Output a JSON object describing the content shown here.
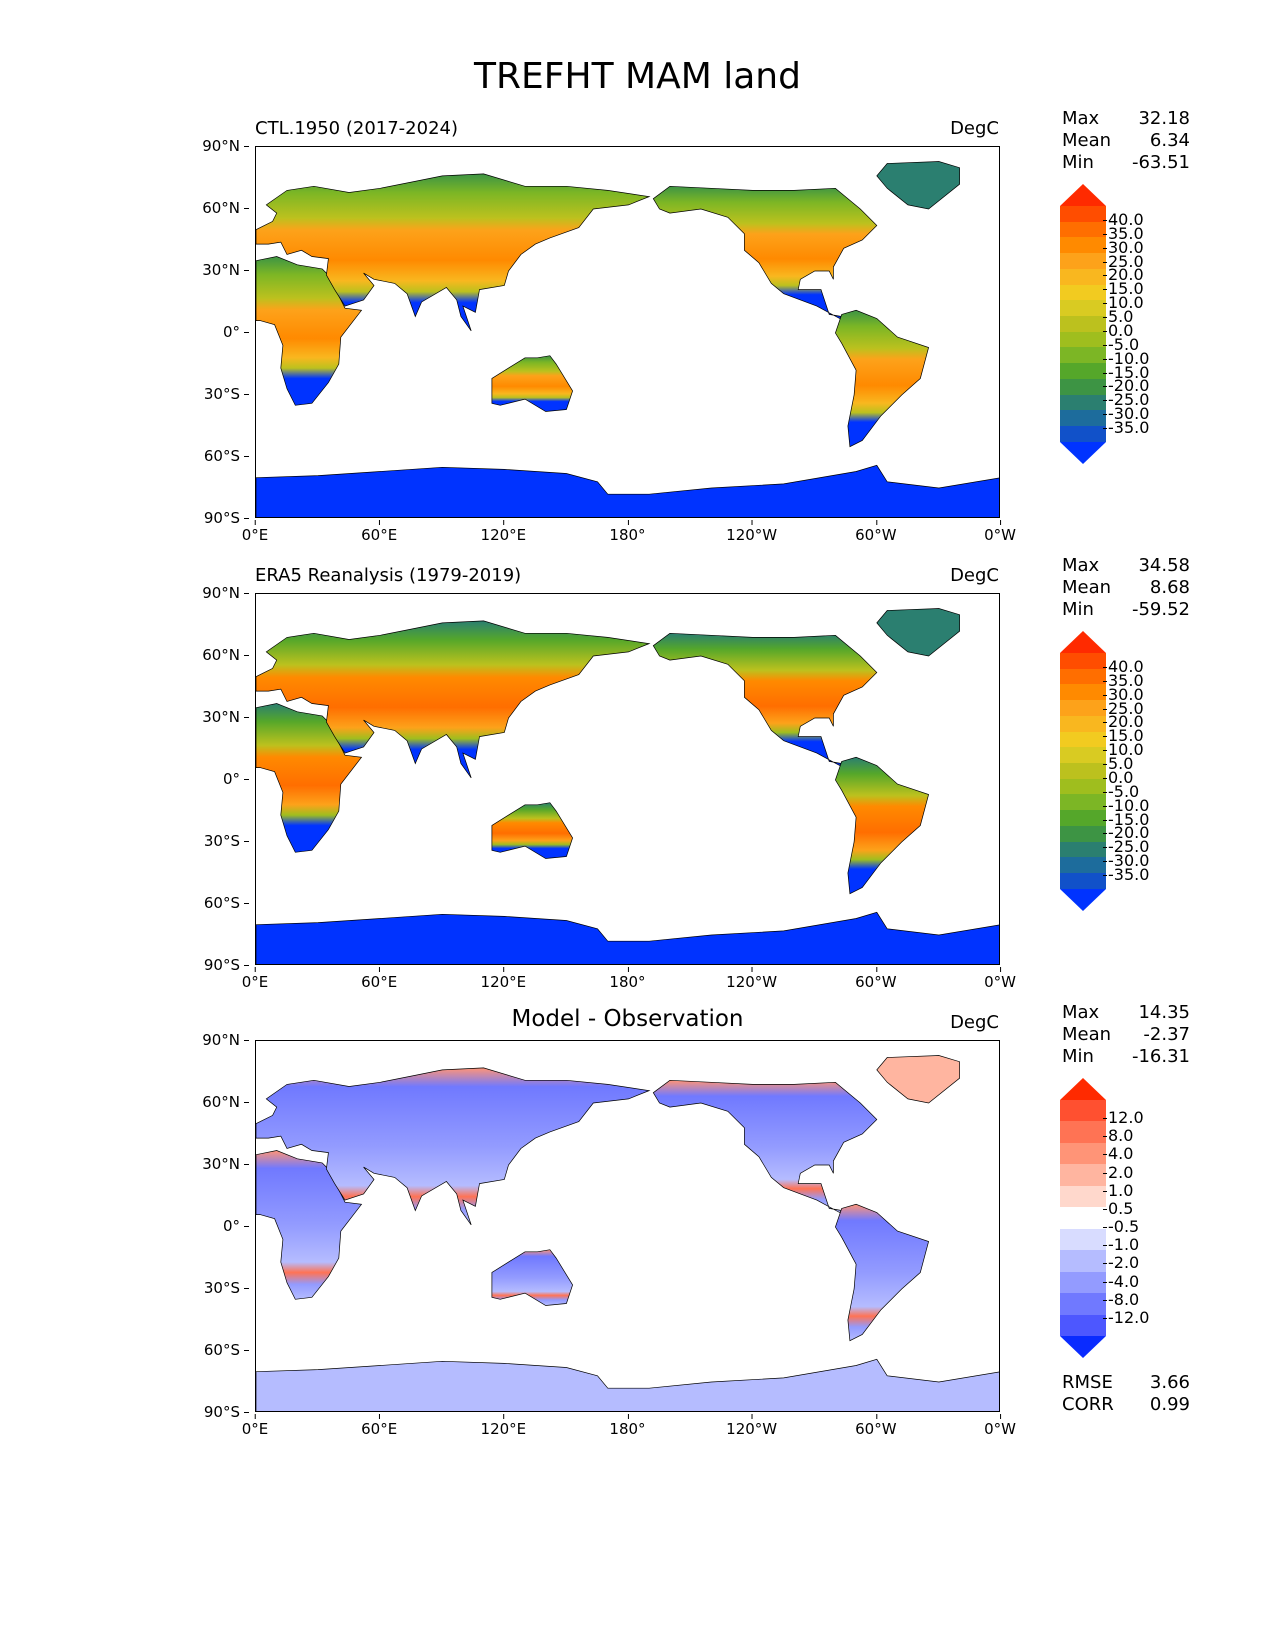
{
  "title": "TREFHT MAM land",
  "x_ticks": [
    "0°E",
    "60°E",
    "120°E",
    "180°",
    "120°W",
    "60°W",
    "0°W"
  ],
  "y_ticks": [
    "90°N",
    "60°N",
    "30°N",
    "0°",
    "30°S",
    "60°S",
    "90°S"
  ],
  "panels": [
    {
      "title": "CTL.1950 (2017-2024)",
      "units": "DegC",
      "stats": {
        "max_label": "Max",
        "max": "32.18",
        "mean_label": "Mean",
        "mean": "6.34",
        "min_label": "Min",
        "min": "-63.51"
      },
      "colorbar_labels": [
        "40.0",
        "35.0",
        "30.0",
        "25.0",
        "20.0",
        "15.0",
        "10.0",
        "5.0",
        "0.0",
        "-5.0",
        "-10.0",
        "-15.0",
        "-20.0",
        "-25.0",
        "-30.0",
        "-35.0"
      ]
    },
    {
      "title": "ERA5 Reanalysis (1979-2019)",
      "units": "DegC",
      "stats": {
        "max_label": "Max",
        "max": "34.58",
        "mean_label": "Mean",
        "mean": "8.68",
        "min_label": "Min",
        "min": "-59.52"
      },
      "colorbar_labels": [
        "40.0",
        "35.0",
        "30.0",
        "25.0",
        "20.0",
        "15.0",
        "10.0",
        "5.0",
        "0.0",
        "-5.0",
        "-10.0",
        "-15.0",
        "-20.0",
        "-25.0",
        "-30.0",
        "-35.0"
      ]
    },
    {
      "title": "Model - Observation",
      "units": "DegC",
      "stats": {
        "max_label": "Max",
        "max": "14.35",
        "mean_label": "Mean",
        "mean": "-2.37",
        "min_label": "Min",
        "min": "-16.31"
      },
      "colorbar_labels": [
        "12.0",
        "8.0",
        "4.0",
        "2.0",
        "1.0",
        "0.5",
        "-0.5",
        "-1.0",
        "-2.0",
        "-4.0",
        "-8.0",
        "-12.0"
      ],
      "metrics": {
        "rmse_label": "RMSE",
        "rmse": "3.66",
        "corr_label": "CORR",
        "corr": "0.99"
      }
    }
  ],
  "colors": {
    "abs_scale": [
      "#ff2a00",
      "#ff4d00",
      "#ff6e00",
      "#ff8a00",
      "#fda21a",
      "#f9b71f",
      "#f2cb20",
      "#d9cb22",
      "#bcc11e",
      "#9fbe1e",
      "#7cb625",
      "#55a72a",
      "#3d9444",
      "#2b7f70",
      "#1d6c9c",
      "#1151c9",
      "#0033ff"
    ],
    "diff_scale": [
      "#ff2a00",
      "#ff5030",
      "#ff7354",
      "#ff9477",
      "#ffb5a0",
      "#ffd8cc",
      "#ffffff",
      "#d8dcff",
      "#b5bcff",
      "#939bff",
      "#7079ff",
      "#4d57ff",
      "#0a2bff"
    ]
  },
  "map_data": {
    "type": "contour-map",
    "projection": "PlateCarree (centered 180°)",
    "variable": "TREFHT",
    "season": "MAM",
    "mask": "land"
  }
}
